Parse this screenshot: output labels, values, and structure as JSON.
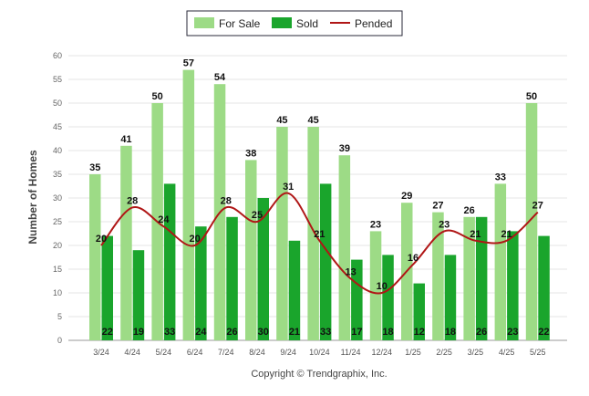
{
  "legend": {
    "for_sale": "For Sale",
    "sold": "Sold",
    "pended": "Pended"
  },
  "colors": {
    "for_sale": "#9ddb86",
    "sold": "#1aa52c",
    "pended": "#b01616",
    "grid": "#e6e6e6"
  },
  "footer": {
    "copyright": "Copyright © Trendgraphix, Inc."
  },
  "chart_data": {
    "type": "bar",
    "ylabel": "Number of Homes",
    "xlabel": "",
    "ylim": [
      0,
      60
    ],
    "yticks": [
      0,
      5,
      10,
      15,
      20,
      25,
      30,
      35,
      40,
      45,
      50,
      55,
      60
    ],
    "grid": true,
    "legend_position": "top-center",
    "categories": [
      "3/24",
      "4/24",
      "5/24",
      "6/24",
      "7/24",
      "8/24",
      "9/24",
      "10/24",
      "11/24",
      "12/24",
      "1/25",
      "2/25",
      "3/25",
      "4/25",
      "5/25"
    ],
    "series": [
      {
        "name": "For Sale",
        "type": "bar",
        "values": [
          35,
          41,
          50,
          57,
          54,
          38,
          45,
          45,
          39,
          23,
          29,
          27,
          26,
          33,
          50
        ]
      },
      {
        "name": "Sold",
        "type": "bar",
        "values": [
          22,
          19,
          33,
          24,
          26,
          30,
          21,
          33,
          17,
          18,
          12,
          18,
          26,
          23,
          22
        ]
      },
      {
        "name": "Pended",
        "type": "line",
        "values": [
          20,
          28,
          24,
          20,
          28,
          25,
          31,
          21,
          13,
          10,
          16,
          23,
          21,
          21,
          27
        ]
      }
    ]
  }
}
